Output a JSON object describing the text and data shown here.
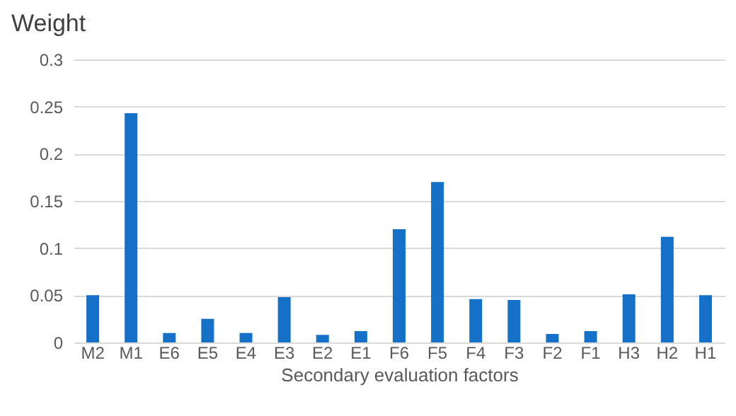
{
  "chart_data": {
    "type": "bar",
    "title": "Weight",
    "xlabel": "Secondary evaluation factors",
    "categories": [
      "M2",
      "M1",
      "E6",
      "E5",
      "E4",
      "E3",
      "E2",
      "E1",
      "F6",
      "F5",
      "F4",
      "F3",
      "F2",
      "F1",
      "H3",
      "H2",
      "H1"
    ],
    "values": [
      0.05,
      0.243,
      0.01,
      0.025,
      0.01,
      0.048,
      0.008,
      0.012,
      0.12,
      0.17,
      0.046,
      0.045,
      0.009,
      0.012,
      0.051,
      0.112,
      0.05
    ],
    "color": "#1570c8",
    "ylim": [
      0,
      0.3
    ],
    "yticks": [
      0,
      0.05,
      0.1,
      0.15,
      0.2,
      0.25,
      0.3
    ],
    "grid": "y"
  }
}
